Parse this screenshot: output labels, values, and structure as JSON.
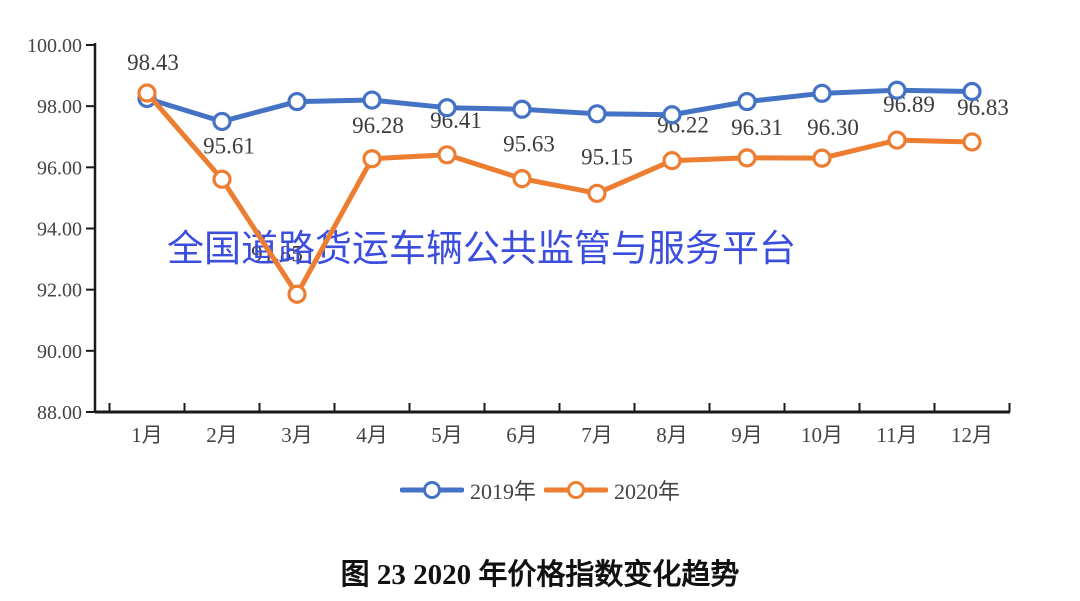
{
  "watermark": {
    "text": "全国道路货运车辆公共监管与服务平台",
    "color": "#3b4edd"
  },
  "caption": "图 23  2020 年价格指数变化趋势",
  "chart_data": {
    "type": "line",
    "title": "",
    "xlabel": "",
    "ylabel": "",
    "categories": [
      "1月",
      "2月",
      "3月",
      "4月",
      "5月",
      "6月",
      "7月",
      "8月",
      "9月",
      "10月",
      "11月",
      "12月"
    ],
    "series": [
      {
        "name": "2019年",
        "color": "#4472c4",
        "values": [
          98.25,
          97.5,
          98.15,
          98.2,
          97.95,
          97.9,
          97.75,
          97.72,
          98.15,
          98.42,
          98.52,
          98.48
        ],
        "data_labels": []
      },
      {
        "name": "2020年",
        "color": "#ed7d31",
        "values": [
          98.43,
          95.61,
          91.85,
          96.28,
          96.41,
          95.63,
          95.15,
          96.22,
          96.31,
          96.3,
          96.89,
          96.83
        ],
        "data_labels": [
          "98.43",
          "95.61",
          "91.85",
          "96.28",
          "96.41",
          "95.63",
          "95.15",
          "96.22",
          "96.31",
          "96.30",
          "96.89",
          "96.83"
        ]
      }
    ],
    "ylim": [
      88,
      100
    ],
    "y_tick_labels": [
      "100.00",
      "98.00",
      "96.00",
      "94.00",
      "92.00",
      "90.00",
      "88.00"
    ],
    "grid": false,
    "legend_position": "bottom",
    "marker_style": "open-circle",
    "axis_color": "#1a1a1a"
  }
}
